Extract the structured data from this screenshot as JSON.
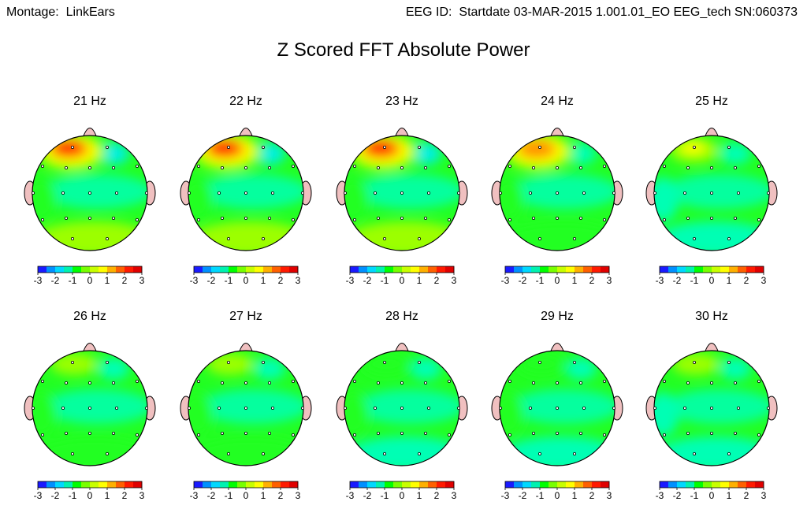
{
  "header": {
    "montage_label": "Montage:",
    "montage_value": "LinkEars",
    "eeg_id_label": "EEG ID:",
    "eeg_id_value": "Startdate 03-MAR-2015 1.001.01_EO EEG_tech SN:060373"
  },
  "title": "Z Scored FFT Absolute Power",
  "colorbar": {
    "ticks": [
      "-3",
      "-2",
      "-1",
      "0",
      "1",
      "2",
      "3"
    ],
    "colors": [
      "#1a1aff",
      "#0090ff",
      "#00d8ff",
      "#00f2b0",
      "#00ff00",
      "#78ff00",
      "#c8ff00",
      "#ffff00",
      "#ffb000",
      "#ff6000",
      "#ff1a00",
      "#e00000"
    ]
  },
  "colors": {
    "head_outline": "#000000",
    "nose_ear_fill": "#f0c0c0",
    "base_green": "#22ff22",
    "cyan": "#00ffb4",
    "cyan_light": "#00f0e0",
    "yellow_green": "#9cff00",
    "yellow": "#ffff00",
    "orange": "#ff9000",
    "red": "#ff0000"
  },
  "maps": [
    {
      "freq": "21 Hz",
      "frontal_left": "red",
      "frontal_right": "cyan_light",
      "posterior": "yellow_green",
      "left_temporal": "base_green"
    },
    {
      "freq": "22 Hz",
      "frontal_left": "red",
      "frontal_right": "cyan_light",
      "posterior": "yellow_green",
      "left_temporal": "base_green"
    },
    {
      "freq": "23 Hz",
      "frontal_left": "red",
      "frontal_right": "cyan_light",
      "posterior": "yellow_green",
      "left_temporal": "base_green"
    },
    {
      "freq": "24 Hz",
      "frontal_left": "orange",
      "frontal_right": "cyan",
      "posterior": "base_green",
      "left_temporal": "base_green"
    },
    {
      "freq": "25 Hz",
      "frontal_left": "yellow",
      "frontal_right": "cyan",
      "posterior": "cyan",
      "left_temporal": "cyan"
    },
    {
      "freq": "26 Hz",
      "frontal_left": "yellow_green",
      "frontal_right": "cyan",
      "posterior": "base_green",
      "left_temporal": "base_green"
    },
    {
      "freq": "27 Hz",
      "frontal_left": "yellow_green",
      "frontal_right": "cyan",
      "posterior": "base_green",
      "left_temporal": "base_green"
    },
    {
      "freq": "28 Hz",
      "frontal_left": "base_green",
      "frontal_right": "cyan",
      "posterior": "cyan",
      "left_temporal": "base_green"
    },
    {
      "freq": "29 Hz",
      "frontal_left": "base_green",
      "frontal_right": "cyan",
      "posterior": "cyan",
      "left_temporal": "base_green"
    },
    {
      "freq": "30 Hz",
      "frontal_left": "yellow_green",
      "frontal_right": "cyan",
      "posterior": "cyan",
      "left_temporal": "cyan"
    }
  ]
}
